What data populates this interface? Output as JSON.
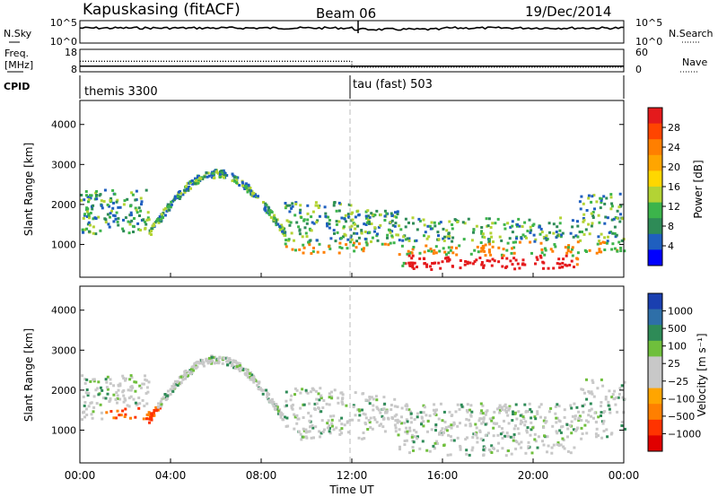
{
  "header": {
    "station": "Kapuskasing (fitACF)",
    "beam": "Beam 06",
    "date": "19/Dec/2014"
  },
  "nsky_panel": {
    "left_label": "N.Sky",
    "right_label": "N.Search",
    "ticks_left": [
      "10^5",
      "10^0"
    ],
    "ticks_right": [
      "10^5",
      "10^0"
    ]
  },
  "freq_panel": {
    "left_label_1": "Freq.",
    "left_label_2": "[MHz]",
    "right_label": "Nave",
    "ticks_left": [
      "18",
      "8"
    ],
    "ticks_right": [
      "60",
      "0"
    ],
    "freq_mhz": [
      {
        "t": 0,
        "v": 10.5
      },
      {
        "t": 24,
        "v": 10.5
      }
    ],
    "nave": [
      {
        "t": 0,
        "v": 28
      },
      {
        "t": 12,
        "v": 28
      },
      {
        "t": 12,
        "v": 12
      },
      {
        "t": 24,
        "v": 12
      }
    ]
  },
  "cpid_panel": {
    "label": "CPID",
    "modes": [
      {
        "name": "themis 3300",
        "start": 0,
        "end": 12
      },
      {
        "name": "tau (fast) 503",
        "start": 12,
        "end": 24
      }
    ]
  },
  "chart_data": [
    {
      "type": "heatmap",
      "name": "power",
      "ylabel": "Slant Range [km]",
      "ylim": [
        180,
        4600
      ],
      "yticks": [
        "1000",
        "2000",
        "3000",
        "4000"
      ],
      "xlim": [
        0,
        24
      ],
      "colorbar": {
        "label": "Power [dB]",
        "ticks": [
          "28",
          "24",
          "20",
          "16",
          "12",
          "8",
          "4"
        ],
        "colors": [
          "#e41a1c",
          "#ff4500",
          "#ff7f00",
          "#ffa500",
          "#ffd700",
          "#b3d334",
          "#3cb44b",
          "#2e8b57",
          "#1f5fbf",
          "#0000ff"
        ]
      }
    },
    {
      "type": "heatmap",
      "name": "velocity",
      "ylabel": "Slant Range [km]",
      "ylim": [
        180,
        4600
      ],
      "yticks": [
        "1000",
        "2000",
        "3000",
        "4000"
      ],
      "xlim": [
        0,
        24
      ],
      "xticks": [
        "00:00",
        "04:00",
        "08:00",
        "12:00",
        "16:00",
        "20:00",
        "00:00"
      ],
      "xlabel": "Time UT",
      "colorbar": {
        "label": "Velocity [m s⁻¹]",
        "ticks": [
          "1000",
          "500",
          "100",
          "25",
          "−25",
          "−100",
          "−500",
          "−1000"
        ],
        "colors": [
          "#1a3fb0",
          "#2e6fa8",
          "#2e8b57",
          "#6fbf3c",
          "#c8c8c8",
          "#c8c8c8",
          "#ffa500",
          "#ff7f00",
          "#ff3300",
          "#e00000"
        ]
      }
    }
  ]
}
